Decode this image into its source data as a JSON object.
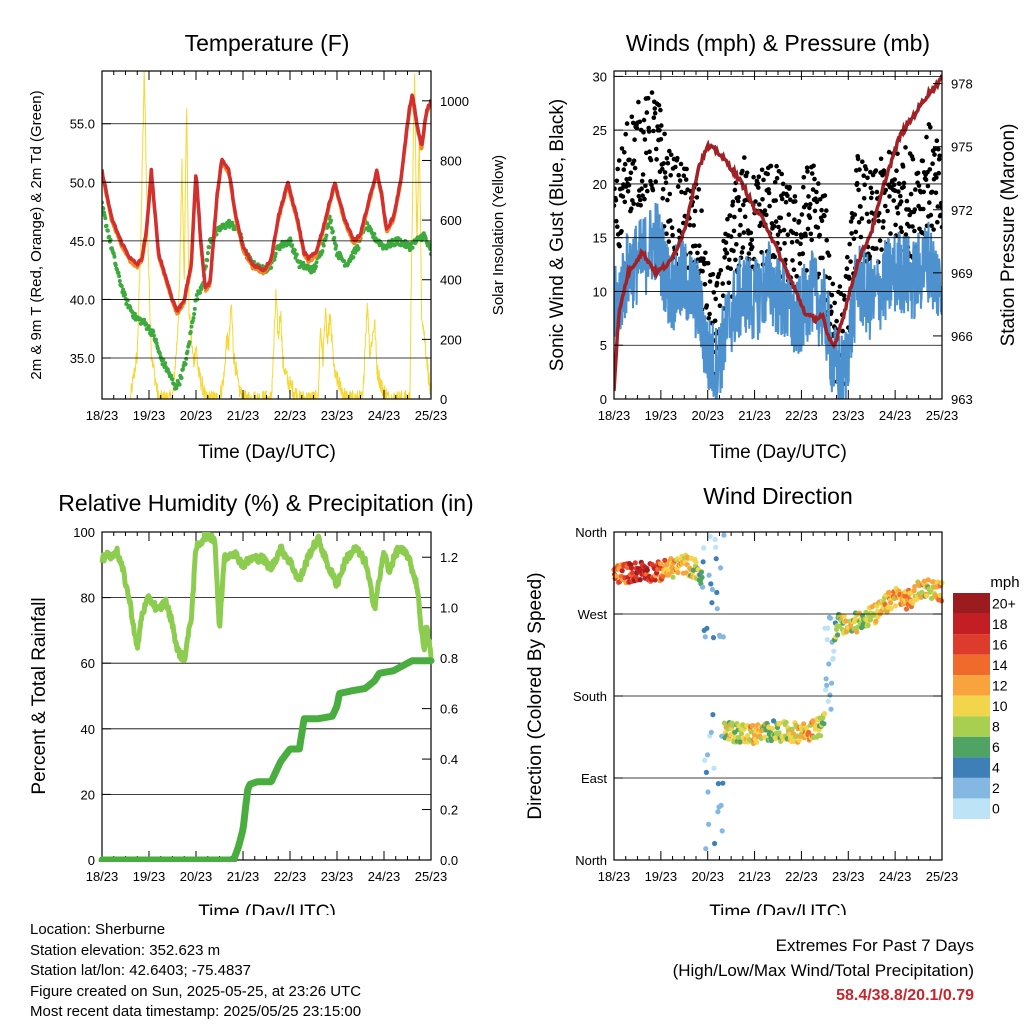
{
  "chart_data": [
    {
      "type": "line",
      "title": "Temperature (F)",
      "xlabel": "Time (Day/UTC)",
      "ylabel": "2m & 9m T (Red, Orange) & 2m Td (Green)",
      "ylabel_right": "Solar Insolation (Yellow)",
      "x_ticks": [
        "18/23",
        "19/23",
        "20/23",
        "21/23",
        "22/23",
        "23/23",
        "24/23",
        "25/23"
      ],
      "ylim": [
        31.5,
        59.5
      ],
      "y_ticks": [
        "35.0",
        "40.0",
        "45.0",
        "50.0",
        "55.0"
      ],
      "y_tick_values": [
        35,
        40,
        45,
        50,
        55
      ],
      "y2lim": [
        0,
        1100
      ],
      "y2_ticks": [
        "0",
        "200",
        "400",
        "600",
        "800",
        "1000"
      ],
      "y2_tick_values": [
        0,
        200,
        400,
        600,
        800,
        1000
      ],
      "grid": true,
      "colors": {
        "t2m": "#d32f2f",
        "t9m": "#f08a24",
        "td": "#3daa3d",
        "solar": "#f6d835"
      },
      "series": [
        {
          "key": "t2m",
          "x": [
            0,
            0.2,
            0.4,
            0.6,
            0.75,
            0.85,
            0.95,
            1.05,
            1.2,
            1.35,
            1.5,
            1.6,
            1.75,
            1.9,
            2.0,
            2.1,
            2.2,
            2.3,
            2.45,
            2.55,
            2.7,
            2.85,
            3.0,
            3.2,
            3.45,
            3.6,
            3.75,
            3.95,
            4.15,
            4.3,
            4.4,
            4.55,
            4.7,
            4.95,
            5.15,
            5.35,
            5.5,
            5.65,
            5.85,
            5.95,
            6.05,
            6.2,
            6.35,
            6.5,
            6.55,
            6.6,
            6.7,
            6.8,
            6.9,
            7.0
          ],
          "values": [
            51,
            47,
            45,
            43.5,
            43,
            43.5,
            46,
            51,
            44,
            42,
            40,
            39,
            40,
            43,
            51,
            45,
            41,
            41.5,
            49,
            52,
            51,
            47,
            44.5,
            43,
            42.5,
            43.5,
            47,
            50,
            47,
            44,
            43.5,
            44,
            46,
            50,
            47,
            45,
            45.5,
            48,
            51,
            49,
            46,
            47,
            50,
            55,
            56.5,
            57.5,
            55,
            53,
            56,
            57
          ]
        },
        {
          "key": "td",
          "x": [
            0,
            0.2,
            0.35,
            0.5,
            0.7,
            0.9,
            1.1,
            1.25,
            1.45,
            1.55,
            1.65,
            1.8,
            2.0,
            2.15,
            2.3,
            2.5,
            2.7,
            2.9,
            3.05,
            3.2,
            3.45,
            3.6,
            3.75,
            4.0,
            4.2,
            4.5,
            4.7,
            4.85,
            5.0,
            5.2,
            5.45,
            5.6,
            5.75,
            6.0,
            6.3,
            6.55,
            6.7,
            6.85,
            7.0
          ],
          "values": [
            48,
            44.5,
            42,
            40,
            38.5,
            38,
            37,
            35,
            33.5,
            32.5,
            33,
            35,
            40,
            41.5,
            45,
            46,
            46.5,
            46,
            44,
            43,
            42.5,
            43,
            44.5,
            45,
            43,
            42.5,
            44.5,
            47,
            44,
            43,
            44.5,
            46.5,
            45.5,
            44.5,
            45,
            44.5,
            45,
            45.5,
            44
          ]
        },
        {
          "key": "solar",
          "x": [
            0.6,
            0.75,
            0.82,
            0.9,
            0.95,
            1.0,
            1.05,
            1.12,
            1.2,
            1.3,
            1.5,
            1.6,
            1.65,
            1.7,
            1.75,
            1.8,
            1.85,
            1.9,
            1.95,
            2.0,
            2.05,
            2.1,
            2.15,
            2.2,
            2.3,
            2.5,
            2.6,
            2.65,
            2.7,
            2.75,
            2.8,
            2.85,
            2.9,
            3.0,
            3.2,
            3.6,
            3.65,
            3.7,
            3.75,
            3.8,
            3.85,
            3.95,
            4.2,
            4.6,
            4.65,
            4.7,
            4.75,
            4.8,
            4.85,
            4.95,
            5.2,
            5.55,
            5.6,
            5.65,
            5.7,
            5.8,
            5.85,
            5.95,
            6.1,
            6.55,
            6.6,
            6.65,
            6.7,
            6.75,
            6.8,
            6.9,
            7.0
          ],
          "values": [
            0,
            150,
            500,
            1100,
            700,
            400,
            150,
            80,
            0,
            0,
            0,
            200,
            380,
            800,
            400,
            1000,
            300,
            200,
            120,
            180,
            90,
            60,
            40,
            0,
            0,
            0,
            80,
            200,
            180,
            320,
            150,
            100,
            40,
            0,
            0,
            0,
            150,
            350,
            200,
            300,
            120,
            60,
            0,
            0,
            250,
            120,
            300,
            180,
            280,
            80,
            0,
            0,
            200,
            320,
            150,
            260,
            100,
            40,
            0,
            0,
            600,
            1100,
            500,
            900,
            300,
            150,
            0
          ]
        }
      ]
    },
    {
      "type": "scatter",
      "title": "Winds (mph) & Pressure (mb)",
      "xlabel": "Time (Day/UTC)",
      "ylabel": "Sonic Wind & Gust (Blue, Black)",
      "ylabel_right": "Station Pressure (Maroon)",
      "x_ticks": [
        "18/23",
        "19/23",
        "20/23",
        "21/23",
        "22/23",
        "23/23",
        "24/23",
        "25/23"
      ],
      "ylim": [
        0,
        30.5
      ],
      "y_ticks": [
        "0",
        "5",
        "10",
        "15",
        "20",
        "25",
        "30"
      ],
      "y_tick_values": [
        0,
        5,
        10,
        15,
        20,
        25,
        30
      ],
      "y2lim": [
        963,
        978.6
      ],
      "y2_ticks": [
        "963",
        "966",
        "969",
        "972",
        "975",
        "978"
      ],
      "y2_tick_values": [
        963,
        966,
        969,
        972,
        975,
        978
      ],
      "grid": true,
      "colors": {
        "wind": "#4d92cf",
        "gust": "#000000",
        "pressure": "#a02226"
      },
      "series": [
        {
          "key": "wind",
          "x": [
            0,
            0.3,
            0.6,
            0.9,
            1.2,
            1.5,
            1.8,
            2.0,
            2.2,
            2.5,
            2.8,
            3.0,
            3.3,
            3.6,
            3.9,
            4.2,
            4.5,
            4.7,
            4.9,
            5.2,
            5.5,
            5.8,
            6.1,
            6.4,
            6.7,
            7.0
          ],
          "values": [
            8,
            12,
            13,
            15,
            10,
            11,
            9,
            4,
            3,
            8,
            10,
            9,
            11,
            9,
            7,
            10,
            8,
            3,
            2,
            11,
            9,
            11,
            12,
            11,
            13,
            10
          ]
        },
        {
          "key": "gust",
          "x": [
            0,
            0.3,
            0.6,
            0.9,
            1.2,
            1.5,
            1.8,
            2.0,
            2.2,
            2.5,
            2.8,
            3.0,
            3.3,
            3.6,
            3.9,
            4.2,
            4.5,
            4.7,
            4.9,
            5.2,
            5.5,
            5.8,
            6.1,
            6.4,
            6.7,
            7.0
          ],
          "values": [
            15,
            22,
            23,
            24,
            18,
            17,
            15,
            8,
            6,
            14,
            18,
            16,
            18,
            16,
            14,
            18,
            14,
            7,
            5,
            18,
            16,
            18,
            19,
            18,
            21,
            18
          ]
        },
        {
          "key": "pressure",
          "x": [
            0,
            0.1,
            0.3,
            0.6,
            0.9,
            1.2,
            1.5,
            1.8,
            2.0,
            2.2,
            2.5,
            2.8,
            3.0,
            3.2,
            3.5,
            3.8,
            4.1,
            4.3,
            4.45,
            4.55,
            4.7,
            4.9,
            5.2,
            5.5,
            5.8,
            6.1,
            6.4,
            6.7,
            6.9,
            7.0
          ],
          "values": [
            963.5,
            967,
            969,
            970,
            969,
            969.5,
            971,
            974,
            975,
            974.8,
            974,
            973,
            972,
            971.5,
            970,
            968.5,
            967,
            966.8,
            967,
            966,
            965.5,
            967,
            969.5,
            971,
            973.5,
            975.5,
            976.5,
            977.5,
            978,
            978.3
          ]
        }
      ]
    },
    {
      "type": "line",
      "title": "Relative Humidity (%) & Precipitation (in)",
      "xlabel": "Time (Day/UTC)",
      "ylabel": "Percent & Total Rainfall",
      "x_ticks": [
        "18/23",
        "19/23",
        "20/23",
        "21/23",
        "22/23",
        "23/23",
        "24/23",
        "25/23"
      ],
      "ylim": [
        0,
        100
      ],
      "y_ticks": [
        "0",
        "20",
        "40",
        "60",
        "80",
        "100"
      ],
      "y_tick_values": [
        0,
        20,
        40,
        60,
        80,
        100
      ],
      "y2lim": [
        0,
        1.3
      ],
      "y2_ticks": [
        "0.0",
        "0.2",
        "0.4",
        "0.6",
        "0.8",
        "1.0",
        "1.2"
      ],
      "y2_tick_values": [
        0,
        0.2,
        0.4,
        0.6,
        0.8,
        1.0,
        1.2
      ],
      "grid": true,
      "colors": {
        "rh": "#8ccd4f",
        "precip": "#49ae3f"
      },
      "series": [
        {
          "key": "rh",
          "x": [
            0,
            0.1,
            0.2,
            0.3,
            0.45,
            0.6,
            0.75,
            0.85,
            1.0,
            1.2,
            1.35,
            1.5,
            1.6,
            1.75,
            1.9,
            2.0,
            2.2,
            2.4,
            2.5,
            2.6,
            2.8,
            3.0,
            3.2,
            3.4,
            3.6,
            3.8,
            4.0,
            4.2,
            4.4,
            4.6,
            4.8,
            5.0,
            5.2,
            5.4,
            5.6,
            5.8,
            6.0,
            6.1,
            6.3,
            6.5,
            6.7,
            6.8,
            6.85,
            6.9,
            7.0
          ],
          "values": [
            91,
            94,
            92,
            95,
            88,
            78,
            64,
            75,
            80,
            76,
            79,
            72,
            64,
            61,
            74,
            95,
            99,
            98,
            70,
            92,
            94,
            90,
            92,
            92,
            89,
            95,
            91,
            85,
            93,
            98,
            90,
            84,
            92,
            95,
            91,
            77,
            94,
            88,
            95,
            93,
            84,
            70,
            63,
            72,
            62
          ]
        },
        {
          "key": "precip",
          "x": [
            0,
            2.8,
            2.9,
            3.0,
            3.05,
            3.1,
            3.15,
            3.3,
            3.6,
            3.8,
            4.0,
            4.2,
            4.25,
            4.3,
            4.6,
            4.9,
            5.0,
            5.05,
            5.3,
            5.6,
            5.8,
            5.9,
            6.2,
            6.5,
            6.6,
            7.0
          ],
          "values": [
            0,
            0,
            0.05,
            0.12,
            0.2,
            0.28,
            0.3,
            0.31,
            0.31,
            0.39,
            0.44,
            0.44,
            0.5,
            0.56,
            0.56,
            0.57,
            0.61,
            0.66,
            0.67,
            0.68,
            0.71,
            0.74,
            0.75,
            0.78,
            0.79,
            0.79
          ]
        }
      ]
    },
    {
      "type": "scatter",
      "title": "Wind Direction",
      "xlabel": "Time (Day/UTC)",
      "ylabel": "Direction (Colored By Speed)",
      "x_ticks": [
        "18/23",
        "19/23",
        "20/23",
        "21/23",
        "22/23",
        "23/23",
        "24/23",
        "25/23"
      ],
      "y_ticks": [
        "North",
        "East",
        "South",
        "West",
        "North"
      ],
      "y_tick_values": [
        0,
        90,
        180,
        270,
        360
      ],
      "ylim": [
        0,
        360
      ],
      "grid": true,
      "legend": {
        "title": "mph",
        "placement": "right",
        "labels": [
          "20+",
          "18",
          "16",
          "14",
          "12",
          "10",
          "8",
          "6",
          "4",
          "2",
          "0"
        ],
        "colors": [
          "#9c1b1e",
          "#c21e24",
          "#dd3b2b",
          "#f06a2b",
          "#f9a33c",
          "#f3d54b",
          "#a8cf4f",
          "#4fa463",
          "#3f7fb8",
          "#84b8e3",
          "#bde3f6"
        ]
      },
      "series": [
        {
          "name": "direction",
          "x": [
            0,
            0.3,
            0.6,
            0.9,
            1.2,
            1.5,
            1.8,
            1.9,
            2.0,
            2.05,
            2.1,
            2.15,
            2.2,
            2.3,
            2.6,
            3.0,
            3.4,
            3.8,
            4.2,
            4.5,
            4.6,
            4.7,
            4.8,
            5.0,
            5.3,
            5.6,
            6.0,
            6.3,
            6.6,
            7.0
          ],
          "values": [
            315,
            315,
            318,
            316,
            320,
            325,
            318,
            300,
            40,
            100,
            70,
            120,
            130,
            140,
            140,
            138,
            142,
            140,
            141,
            150,
            230,
            250,
            260,
            255,
            265,
            270,
            290,
            285,
            300,
            295
          ],
          "speeds": [
            14,
            16,
            18,
            15,
            12,
            10,
            8,
            4,
            4,
            6,
            8,
            8,
            9,
            10,
            8,
            11,
            7,
            9,
            12,
            8,
            4,
            6,
            8,
            10,
            8,
            10,
            11,
            12,
            9,
            12
          ]
        }
      ]
    }
  ],
  "footer": {
    "location": "Location: Sherburne",
    "elevation": "Station elevation: 352.623 m",
    "latlon": "Station lat/lon: 42.6403; -75.4837",
    "created": "Figure created on Sun, 2025-05-25, at 23:26 UTC",
    "timestamp": "Most recent data timestamp: 2025/05/25 23:15:00",
    "extremes_title": "Extremes For Past 7 Days",
    "extremes_subtitle": "(High/Low/Max Wind/Total Precipitation)",
    "extremes_value": "58.4/38.8/20.1/0.79"
  }
}
